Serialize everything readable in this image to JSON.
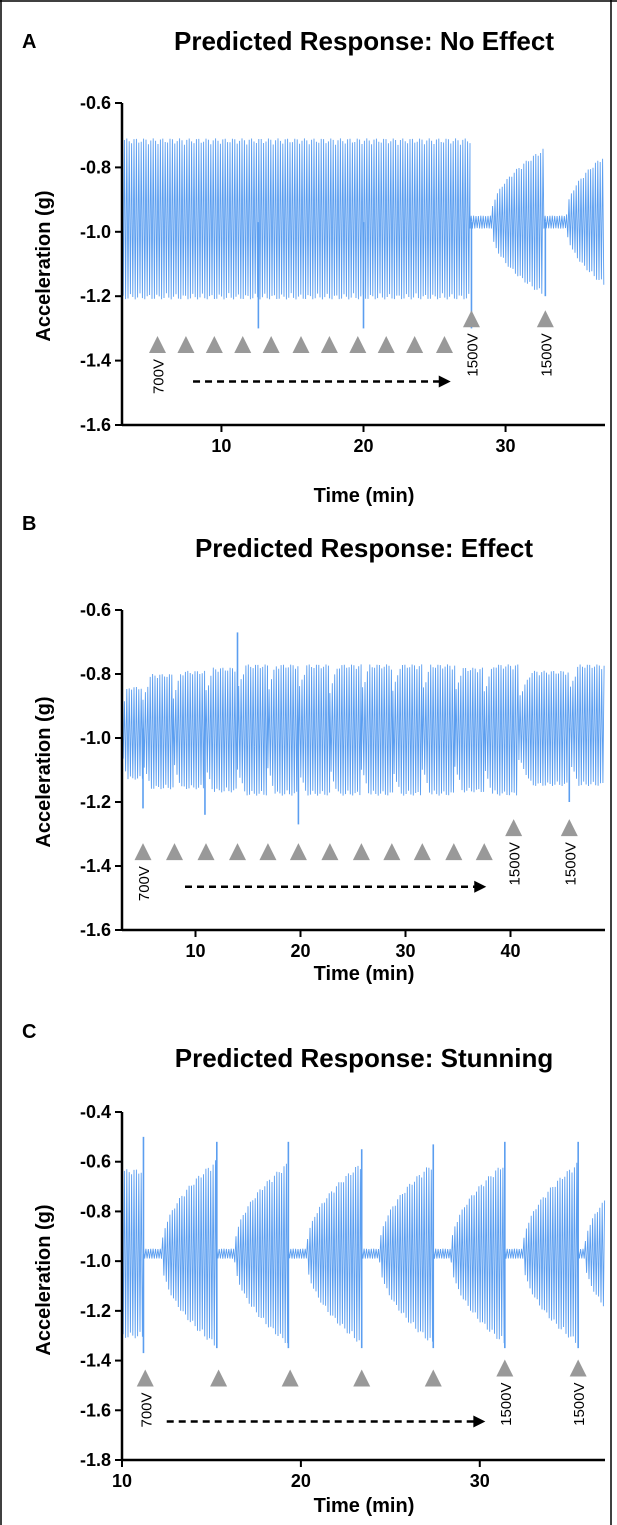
{
  "chart_data": [
    {
      "panel": "A",
      "title": "Predicted  Response: No Effect",
      "type": "line",
      "xlabel": "Time (min)",
      "ylabel": "Acceleration  (g)",
      "xlim": [
        3,
        37
      ],
      "ylim": [
        -1.6,
        -0.6
      ],
      "xticks": [
        10,
        20,
        30
      ],
      "yticks": [
        -0.6,
        -0.8,
        -1.0,
        -1.2,
        -1.4,
        -1.6
      ],
      "grid": false,
      "legend": "none",
      "series_color": "#5b9ef0",
      "signal_segments": [
        {
          "x_start": 3.0,
          "x_end": 27.5,
          "form": "steady",
          "lo": -1.21,
          "hi": -0.71
        },
        {
          "x_start": 27.5,
          "x_end": 29.0,
          "form": "flat",
          "lo": -0.99,
          "hi": -0.95
        },
        {
          "x_start": 29.0,
          "x_end": 32.7,
          "form": "grow",
          "lo": -1.18,
          "hi": -0.76
        },
        {
          "x_start": 32.7,
          "x_end": 34.3,
          "form": "flat",
          "lo": -0.99,
          "hi": -0.95
        },
        {
          "x_start": 34.3,
          "x_end": 37.0,
          "form": "grow",
          "lo": -1.15,
          "hi": -0.78
        }
      ],
      "spikes": [
        {
          "x": 27.6,
          "y": -1.3
        },
        {
          "x": 32.8,
          "y": -1.2
        },
        {
          "x": 12.6,
          "y": -1.3
        },
        {
          "x": 20.0,
          "y": -1.3
        }
      ],
      "stimuli": [
        {
          "x": 5.5,
          "voltage": "700V"
        },
        {
          "x": 7.5
        },
        {
          "x": 9.5
        },
        {
          "x": 11.5
        },
        {
          "x": 13.5
        },
        {
          "x": 15.6
        },
        {
          "x": 17.6
        },
        {
          "x": 19.6
        },
        {
          "x": 21.6
        },
        {
          "x": 23.6
        },
        {
          "x": 25.7
        },
        {
          "x": 27.6,
          "voltage": "1500V"
        },
        {
          "x": 32.8,
          "voltage": "1500V"
        }
      ],
      "stimulus_marker_y": -1.35,
      "high_marker_y": -1.27,
      "arrow": {
        "x_start": 8.0,
        "x_end": 26.0,
        "y": -1.465
      }
    },
    {
      "panel": "B",
      "title": "Predicted Response: Effect",
      "type": "line",
      "xlabel": "Time (min)",
      "ylabel": "Acceleration  (g)",
      "xlim": [
        3,
        49
      ],
      "ylim": [
        -1.6,
        -0.6
      ],
      "xticks": [
        10,
        20,
        30,
        40
      ],
      "yticks": [
        -0.6,
        -0.8,
        -1.0,
        -1.2,
        -1.4,
        -1.6
      ],
      "grid": false,
      "legend": "none",
      "series_color": "#5b9ef0",
      "bursts": [
        {
          "x_start": 3.0,
          "x_end": 5.0,
          "hi": -0.84,
          "lo": -1.13
        },
        {
          "x_start": 5.0,
          "x_end": 7.9,
          "hi": -0.8,
          "lo": -1.16
        },
        {
          "x_start": 7.9,
          "x_end": 10.9,
          "hi": -0.79,
          "lo": -1.16
        },
        {
          "x_start": 10.9,
          "x_end": 14.0,
          "hi": -0.78,
          "lo": -1.17
        },
        {
          "x_start": 14.0,
          "x_end": 16.9,
          "hi": -0.77,
          "lo": -1.18
        },
        {
          "x_start": 16.9,
          "x_end": 19.8,
          "hi": -0.77,
          "lo": -1.18
        },
        {
          "x_start": 19.8,
          "x_end": 22.8,
          "hi": -0.77,
          "lo": -1.18
        },
        {
          "x_start": 22.8,
          "x_end": 25.8,
          "hi": -0.77,
          "lo": -1.18
        },
        {
          "x_start": 25.8,
          "x_end": 28.8,
          "hi": -0.77,
          "lo": -1.18
        },
        {
          "x_start": 28.8,
          "x_end": 31.6,
          "hi": -0.77,
          "lo": -1.18
        },
        {
          "x_start": 31.6,
          "x_end": 34.7,
          "hi": -0.77,
          "lo": -1.18
        },
        {
          "x_start": 34.7,
          "x_end": 37.5,
          "hi": -0.78,
          "lo": -1.17
        },
        {
          "x_start": 37.5,
          "x_end": 40.8,
          "hi": -0.77,
          "lo": -1.18
        },
        {
          "x_start": 40.8,
          "x_end": 45.6,
          "hi": -0.79,
          "lo": -1.15
        },
        {
          "x_start": 45.6,
          "x_end": 49.0,
          "hi": -0.77,
          "lo": -1.15
        }
      ],
      "spikes": [
        {
          "x": 14.0,
          "y": -0.67
        },
        {
          "x": 19.8,
          "y": -1.27
        },
        {
          "x": 5.0,
          "y": -1.22
        },
        {
          "x": 10.9,
          "y": -1.24
        },
        {
          "x": 45.6,
          "y": -1.2
        }
      ],
      "stimuli": [
        {
          "x": 5.0,
          "voltage": "700V"
        },
        {
          "x": 8.0
        },
        {
          "x": 11.0
        },
        {
          "x": 14.0
        },
        {
          "x": 16.9
        },
        {
          "x": 19.8
        },
        {
          "x": 22.8
        },
        {
          "x": 25.8
        },
        {
          "x": 28.7
        },
        {
          "x": 31.6
        },
        {
          "x": 34.6
        },
        {
          "x": 37.5
        },
        {
          "x": 40.3,
          "voltage": "1500V"
        },
        {
          "x": 45.6,
          "voltage": "1500V"
        }
      ],
      "stimulus_marker_y": -1.355,
      "high_marker_y": -1.28,
      "arrow": {
        "x_start": 9.0,
        "x_end": 37.5,
        "y": -1.465
      }
    },
    {
      "panel": "C",
      "title": "Predicted  Response: Stunning",
      "type": "line",
      "xlabel": "Time (min)",
      "ylabel": "Acceleration  (g)",
      "xlim": [
        10,
        37
      ],
      "ylim": [
        -1.8,
        -0.4
      ],
      "xticks": [
        10,
        20,
        30
      ],
      "yticks": [
        -0.4,
        -0.6,
        -0.8,
        -1.0,
        -1.2,
        -1.4,
        -1.6,
        -1.8
      ],
      "grid": false,
      "legend": "none",
      "series_color": "#5b9ef0",
      "cycles": [
        {
          "x_start": 10.0,
          "x_end": 11.2,
          "start_amp": 0.34,
          "end_amp": 0.34
        },
        {
          "x_start": 11.2,
          "x_end": 15.3,
          "start_amp": 0.02,
          "end_amp": 0.38
        },
        {
          "x_start": 15.3,
          "x_end": 19.3,
          "start_amp": 0.02,
          "end_amp": 0.37
        },
        {
          "x_start": 19.3,
          "x_end": 23.4,
          "start_amp": 0.02,
          "end_amp": 0.37
        },
        {
          "x_start": 23.4,
          "x_end": 27.4,
          "start_amp": 0.02,
          "end_amp": 0.37
        },
        {
          "x_start": 27.4,
          "x_end": 31.4,
          "start_amp": 0.02,
          "end_amp": 0.37
        },
        {
          "x_start": 31.4,
          "x_end": 35.5,
          "start_amp": 0.02,
          "end_amp": 0.37
        },
        {
          "x_start": 35.5,
          "x_end": 37.0,
          "start_amp": 0.02,
          "end_amp": 0.22
        }
      ],
      "spikes": [
        {
          "x": 11.2,
          "y": -0.5
        },
        {
          "x": 11.2,
          "y": -1.37
        },
        {
          "x": 15.3,
          "y": -0.52
        },
        {
          "x": 15.3,
          "y": -1.35
        },
        {
          "x": 19.3,
          "y": -0.52
        },
        {
          "x": 19.3,
          "y": -1.35
        },
        {
          "x": 23.4,
          "y": -0.55
        },
        {
          "x": 23.4,
          "y": -1.35
        },
        {
          "x": 27.4,
          "y": -0.53
        },
        {
          "x": 27.4,
          "y": -1.35
        },
        {
          "x": 31.4,
          "y": -0.52
        },
        {
          "x": 31.4,
          "y": -1.35
        },
        {
          "x": 35.5,
          "y": -0.52
        },
        {
          "x": 35.5,
          "y": -1.35
        }
      ],
      "stimuli": [
        {
          "x": 11.3,
          "voltage": "700V"
        },
        {
          "x": 15.4
        },
        {
          "x": 19.4
        },
        {
          "x": 23.4
        },
        {
          "x": 27.4
        },
        {
          "x": 31.4,
          "voltage": "1500V"
        },
        {
          "x": 35.5,
          "voltage": "1500V"
        }
      ],
      "stimulus_marker_y": -1.47,
      "high_marker_y": -1.43,
      "arrow": {
        "x_start": 12.5,
        "x_end": 30.2,
        "y": -1.645
      }
    }
  ]
}
